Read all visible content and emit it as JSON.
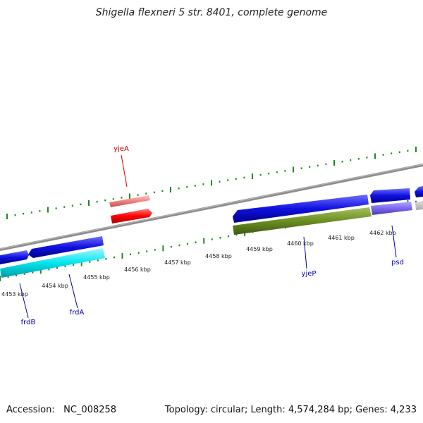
{
  "title": "Shigella flexneri 5 str. 8401, complete genome",
  "footer": {
    "accession_label": "Accession:",
    "accession_value": "NC_008258",
    "topology_text": "Topology: circular; Length: 4,574,284 bp; Genes: 4,233"
  },
  "ruler": {
    "unit": "kbp",
    "labels": [
      "4453 kbp",
      "4454 kbp",
      "4455 kbp",
      "4456 kbp",
      "4457 kbp",
      "4458 kbp",
      "4459 kbp",
      "4460 kbp",
      "4461 kbp",
      "4462 kbp"
    ]
  },
  "genes": [
    {
      "name": "yjeA",
      "color": "#cc0000"
    },
    {
      "name": "frdB",
      "color": "#0000aa"
    },
    {
      "name": "frdA",
      "color": "#0000aa"
    },
    {
      "name": "yjeP",
      "color": "#0000aa"
    },
    {
      "name": "psd",
      "color": "#0000aa"
    }
  ],
  "colors": {
    "backbone": "#8c8c8c",
    "tick": "#1f8a1f",
    "forward_strand": "#1010e0",
    "cyan_gene": "#00e5ee",
    "olive_gene": "#6b8e23",
    "purple_gene": "#7b68ee",
    "pink_gene": "#f08080",
    "red_gene": "#ff0000"
  }
}
